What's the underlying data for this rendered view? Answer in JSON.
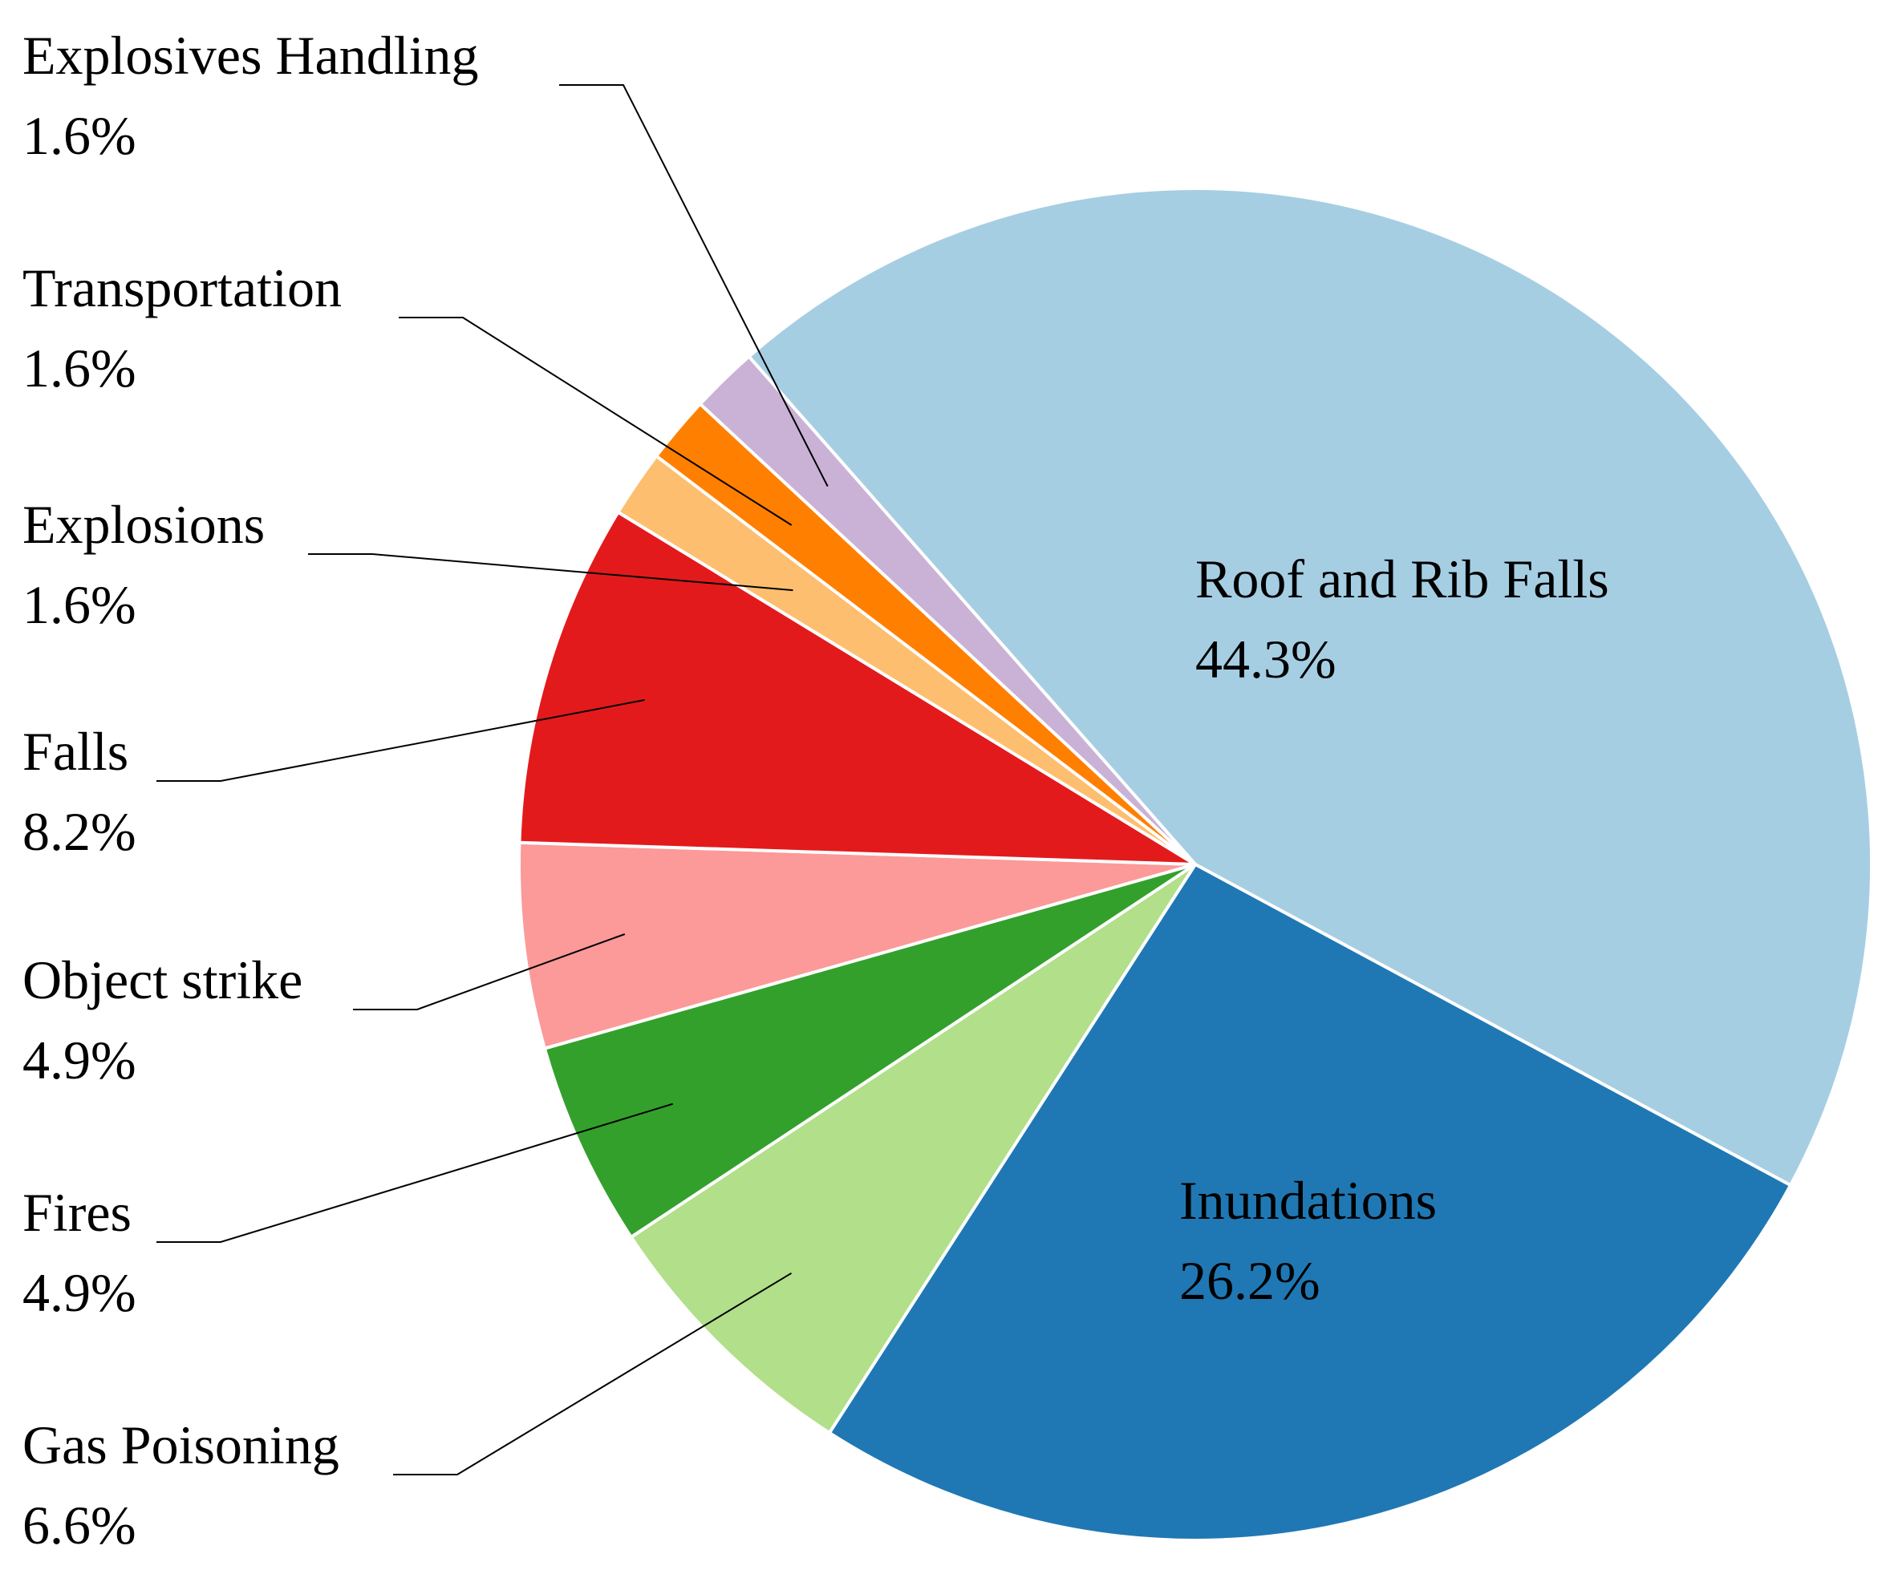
{
  "chart_data": {
    "type": "pie",
    "title": "",
    "start_angle_deg": -41.3,
    "direction": "clockwise",
    "slices": [
      {
        "label": "Roof and Rib Falls",
        "value": 44.3,
        "value_label": "44.3%",
        "color": "#a6cee3",
        "label_position": "inside"
      },
      {
        "label": "Inundations",
        "value": 26.2,
        "value_label": "26.2%",
        "color": "#1f78b4",
        "label_position": "inside"
      },
      {
        "label": "Gas Poisoning",
        "value": 6.6,
        "value_label": "6.6%",
        "color": "#b2df8a",
        "label_position": "outside"
      },
      {
        "label": "Fires",
        "value": 4.9,
        "value_label": "4.9%",
        "color": "#33a02c",
        "label_position": "outside"
      },
      {
        "label": "Object strike",
        "value": 4.9,
        "value_label": "4.9%",
        "color": "#fb9a99",
        "label_position": "outside"
      },
      {
        "label": "Falls",
        "value": 8.2,
        "value_label": "8.2%",
        "color": "#e31a1c",
        "label_position": "outside"
      },
      {
        "label": "Explosions",
        "value": 1.6,
        "value_label": "1.6%",
        "color": "#fdbf6f",
        "label_position": "outside"
      },
      {
        "label": "Transportation",
        "value": 1.6,
        "value_label": "1.6%",
        "color": "#ff7f00",
        "label_position": "outside"
      },
      {
        "label": "Explosives Handling",
        "value": 1.6,
        "value_label": "1.6%",
        "color": "#cab2d6",
        "label_position": "outside"
      }
    ]
  }
}
